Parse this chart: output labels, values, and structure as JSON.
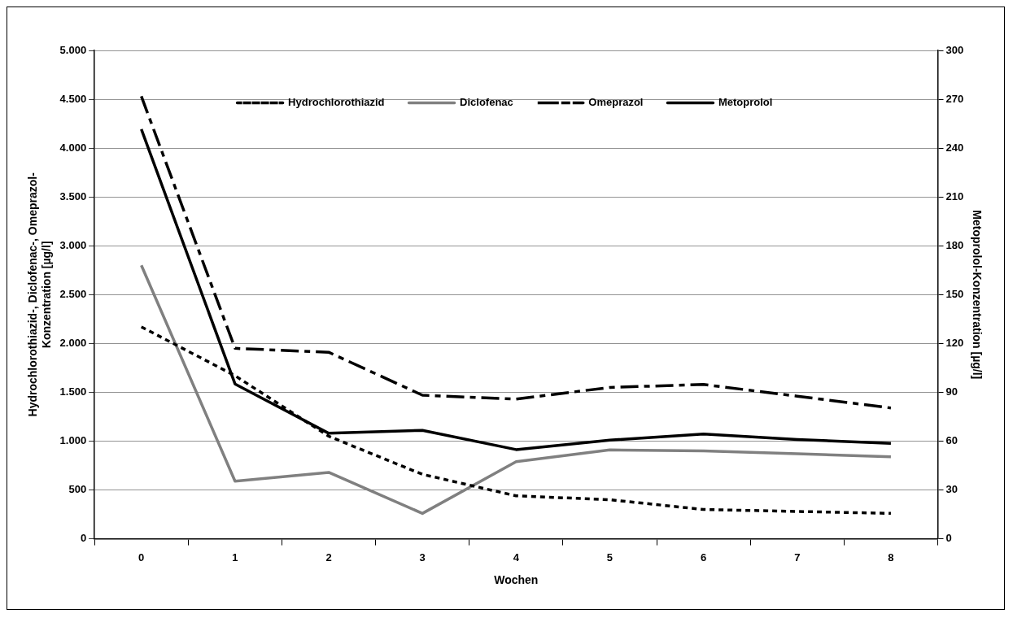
{
  "chart_data": {
    "type": "line",
    "xlabel": "Wochen",
    "ylabel": "Hydrochlorothiazid-, Diclofenac-, Omeprazol-\nKonzentration [µg/l]",
    "y2label": "Metoprolol-Konzentration [µg/l]",
    "categories": [
      "0",
      "1",
      "2",
      "3",
      "4",
      "5",
      "6",
      "7",
      "8"
    ],
    "series": [
      {
        "name": "Hydrochlorothiazid",
        "color": "#000000",
        "line_style": "dotted",
        "values": [
          2170,
          1670,
          1050,
          660,
          440,
          400,
          300,
          280,
          260
        ]
      },
      {
        "name": "Diclofenac",
        "color": "#808080",
        "line_style": "solid",
        "values": [
          2800,
          590,
          680,
          260,
          790,
          910,
          900,
          870,
          840
        ]
      },
      {
        "name": "Omeprazol",
        "color": "#000000",
        "line_style": "dashed",
        "values": [
          4530,
          1950,
          1910,
          1470,
          1430,
          1550,
          1580,
          1460,
          1340
        ]
      },
      {
        "name": "Metoprolol",
        "color": "#000000",
        "line_style": "solid",
        "axis": "y2",
        "values": [
          251.6,
          95.1,
          64.8,
          66.6,
          54.8,
          60.6,
          64.4,
          61,
          58.6
        ]
      }
    ],
    "ylim": [
      0,
      5000
    ],
    "yticks": [
      0,
      500,
      {
        "value": 1000,
        "label": "1.000"
      },
      {
        "value": 1500,
        "label": "1.500"
      },
      {
        "value": 2000,
        "label": "2.000"
      },
      {
        "value": 2500,
        "label": "2.500"
      },
      {
        "value": 3000,
        "label": "3.000"
      },
      {
        "value": 3500,
        "label": "3.500"
      },
      {
        "value": 4000,
        "label": "4.000"
      },
      {
        "value": 4500,
        "label": "4.500"
      },
      {
        "value": 5000,
        "label": "5.000"
      }
    ],
    "y2lim": [
      0,
      300
    ],
    "y2ticks": [
      0,
      30,
      60,
      90,
      120,
      150,
      180,
      210,
      240,
      270,
      300
    ],
    "grid": "y",
    "legend": "top",
    "marker": "none"
  }
}
